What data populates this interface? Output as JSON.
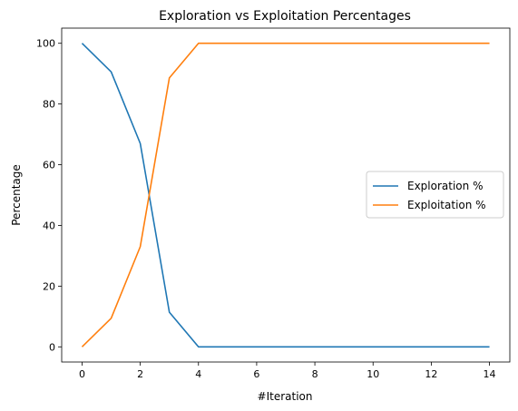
{
  "chart_data": {
    "type": "line",
    "title": "Exploration vs Exploitation Percentages",
    "xlabel": "#Iteration",
    "ylabel": "Percentage",
    "x": [
      0,
      1,
      2,
      3,
      4,
      5,
      6,
      7,
      8,
      9,
      10,
      11,
      12,
      13,
      14
    ],
    "xlim": [
      -0.7,
      14.7
    ],
    "ylim": [
      -5,
      105
    ],
    "xticks": [
      0,
      2,
      4,
      6,
      8,
      10,
      12,
      14
    ],
    "yticks": [
      0,
      20,
      40,
      60,
      80,
      100
    ],
    "grid": false,
    "legend_position": "center-right",
    "series": [
      {
        "name": "Exploration %",
        "color": "#1f77b4",
        "values": [
          100,
          90.6,
          67,
          11.4,
          0,
          0,
          0,
          0,
          0,
          0,
          0,
          0,
          0,
          0,
          0
        ]
      },
      {
        "name": "Exploitation %",
        "color": "#ff7f0e",
        "values": [
          0,
          9.4,
          33,
          88.6,
          100,
          100,
          100,
          100,
          100,
          100,
          100,
          100,
          100,
          100,
          100
        ]
      }
    ]
  }
}
